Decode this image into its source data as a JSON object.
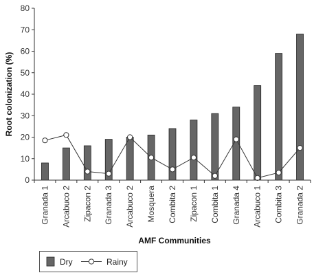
{
  "chart_data": {
    "type": "bar",
    "xlabel": "AMF Communities",
    "ylabel": "Root colonization (%)",
    "ylim": [
      0,
      80
    ],
    "yticks": [
      0,
      10,
      20,
      30,
      40,
      50,
      60,
      70,
      80
    ],
    "grid": false,
    "legend_position": "bottom-left",
    "categories": [
      "Granada 1",
      "Arcabuco 2",
      "Zipacon 2",
      "Granada 3",
      "Arcabuco 2",
      "Mosquera",
      "Combita 2",
      "Zipacon 1",
      "Combita 1",
      "Granada 4",
      "Arcabuco 1",
      "Combita 3",
      "Granada 2"
    ],
    "series": [
      {
        "name": "Dry",
        "type": "bar",
        "color": "#666666",
        "values": [
          8,
          15,
          16,
          19,
          20,
          21,
          24,
          28,
          31,
          34,
          44,
          59,
          68
        ]
      },
      {
        "name": "Rainy",
        "type": "line",
        "color": "#333333",
        "values": [
          18.5,
          21,
          4,
          3,
          20,
          10.5,
          5,
          10.5,
          2,
          19,
          1,
          3.5,
          15
        ]
      }
    ]
  }
}
